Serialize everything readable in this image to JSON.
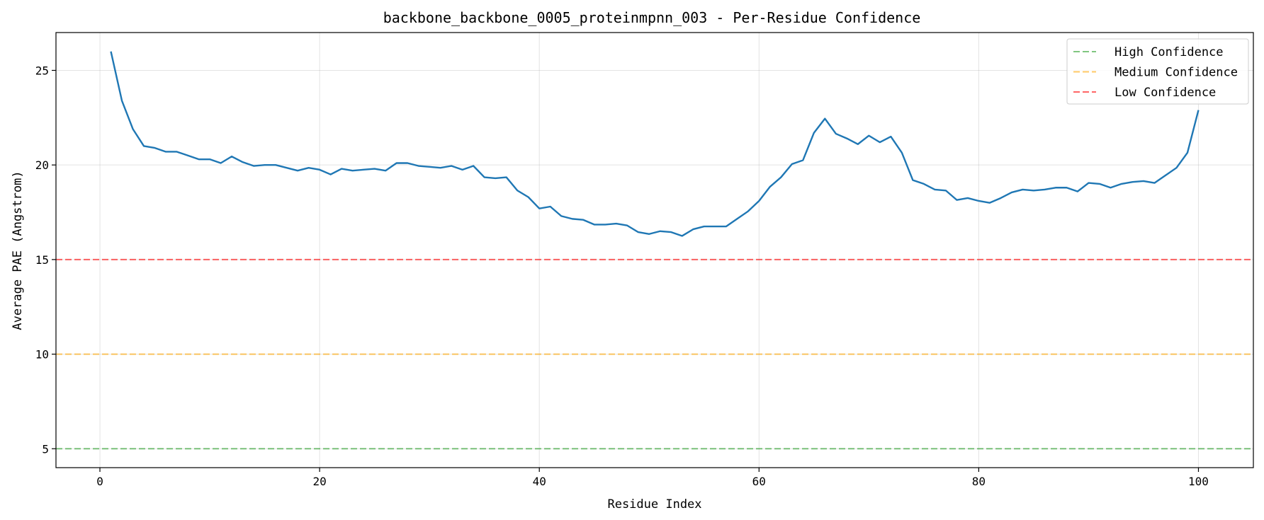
{
  "chart_data": {
    "type": "line",
    "title": "backbone_backbone_0005_proteinmpnn_003 - Per-Residue Confidence",
    "xlabel": "Residue Index",
    "ylabel": "Average PAE (Angstrom)",
    "xlim": [
      -4,
      105
    ],
    "ylim": [
      4,
      27
    ],
    "xticks": [
      0,
      20,
      40,
      60,
      80,
      100
    ],
    "yticks": [
      5,
      10,
      15,
      20,
      25
    ],
    "grid": true,
    "legend_position": "top-right",
    "series": [
      {
        "color": "#1f77b4",
        "x": [
          1,
          2,
          3,
          4,
          5,
          6,
          7,
          8,
          9,
          10,
          11,
          12,
          13,
          14,
          15,
          16,
          17,
          18,
          19,
          20,
          21,
          22,
          23,
          24,
          25,
          26,
          27,
          28,
          29,
          30,
          31,
          32,
          33,
          34,
          35,
          36,
          37,
          38,
          39,
          40,
          41,
          42,
          43,
          44,
          45,
          46,
          47,
          48,
          49,
          50,
          51,
          52,
          53,
          54,
          55,
          56,
          57,
          58,
          59,
          60,
          61,
          62,
          63,
          64,
          65,
          66,
          67,
          68,
          69,
          70,
          71,
          72,
          73,
          74,
          75,
          76,
          77,
          78,
          79,
          80,
          81,
          82,
          83,
          84,
          85,
          86,
          87,
          88,
          89,
          90,
          91,
          92,
          93,
          94,
          95,
          96,
          97,
          98,
          99,
          100
        ],
        "y": [
          26.0,
          23.4,
          21.9,
          21.0,
          20.9,
          20.7,
          20.7,
          20.5,
          20.3,
          20.3,
          20.1,
          20.45,
          20.15,
          19.95,
          20.0,
          20.0,
          19.85,
          19.7,
          19.85,
          19.75,
          19.5,
          19.8,
          19.7,
          19.75,
          19.8,
          19.7,
          20.1,
          20.1,
          19.95,
          19.9,
          19.85,
          19.95,
          19.75,
          19.95,
          19.35,
          19.3,
          19.35,
          18.65,
          18.3,
          17.7,
          17.8,
          17.3,
          17.15,
          17.1,
          16.85,
          16.85,
          16.9,
          16.8,
          16.45,
          16.35,
          16.5,
          16.45,
          16.25,
          16.6,
          16.75,
          16.75,
          16.75,
          17.15,
          17.55,
          18.1,
          18.85,
          19.35,
          20.05,
          20.25,
          21.7,
          22.45,
          21.65,
          21.4,
          21.1,
          21.55,
          21.2,
          21.5,
          20.65,
          19.2,
          19.0,
          18.7,
          18.65,
          18.15,
          18.25,
          18.1,
          18.0,
          18.25,
          18.55,
          18.7,
          18.65,
          18.7,
          18.8,
          18.8,
          18.6,
          19.05,
          19.0,
          18.8,
          19.0,
          19.1,
          19.15,
          19.05,
          19.45,
          19.85,
          20.65,
          22.9
        ]
      }
    ],
    "reference_lines": [
      {
        "name": "High Confidence",
        "y": 5,
        "color": "#2ca02c"
      },
      {
        "name": "Medium Confidence",
        "y": 10,
        "color": "#ffa500"
      },
      {
        "name": "Low Confidence",
        "y": 15,
        "color": "#ff0000"
      }
    ]
  }
}
